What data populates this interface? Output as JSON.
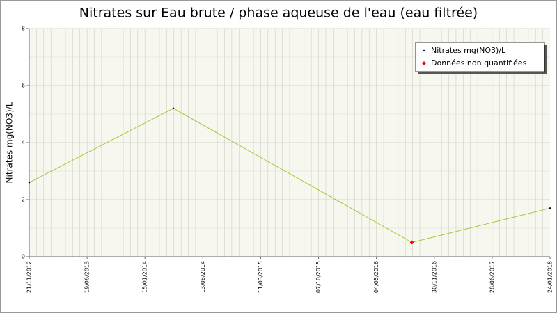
{
  "chart_data": {
    "type": "line",
    "title": "Nitrates sur Eau brute / phase aqueuse de l'eau (eau filtrée)",
    "y_label": "Nitrates mg(NO3)/L",
    "x": [
      "21/11/2012",
      "28/04/2014",
      "10/09/2016",
      "24/01/2018"
    ],
    "series": [
      {
        "name": "Nitrates mg(NO3)/L",
        "color": "#99cc33",
        "marker_color": "#000000",
        "values": [
          2.6,
          5.2,
          0.5,
          1.7
        ]
      },
      {
        "name": "Données non quantifiées",
        "color": "#ff0000",
        "marker_color": "#ff0000",
        "values": [
          null,
          null,
          0.5,
          null
        ]
      }
    ],
    "xlim": [
      "21/11/2012",
      "24/01/2018"
    ],
    "xticks": [
      "21/11/2012",
      "19/06/2013",
      "15/01/2014",
      "13/08/2014",
      "11/03/2015",
      "07/10/2015",
      "04/05/2016",
      "30/11/2016",
      "28/06/2017",
      "24/01/2018"
    ],
    "ylim": [
      0,
      8
    ],
    "yticks": [
      0,
      2,
      4,
      6,
      8
    ],
    "grid": true,
    "legend": "top-right"
  }
}
